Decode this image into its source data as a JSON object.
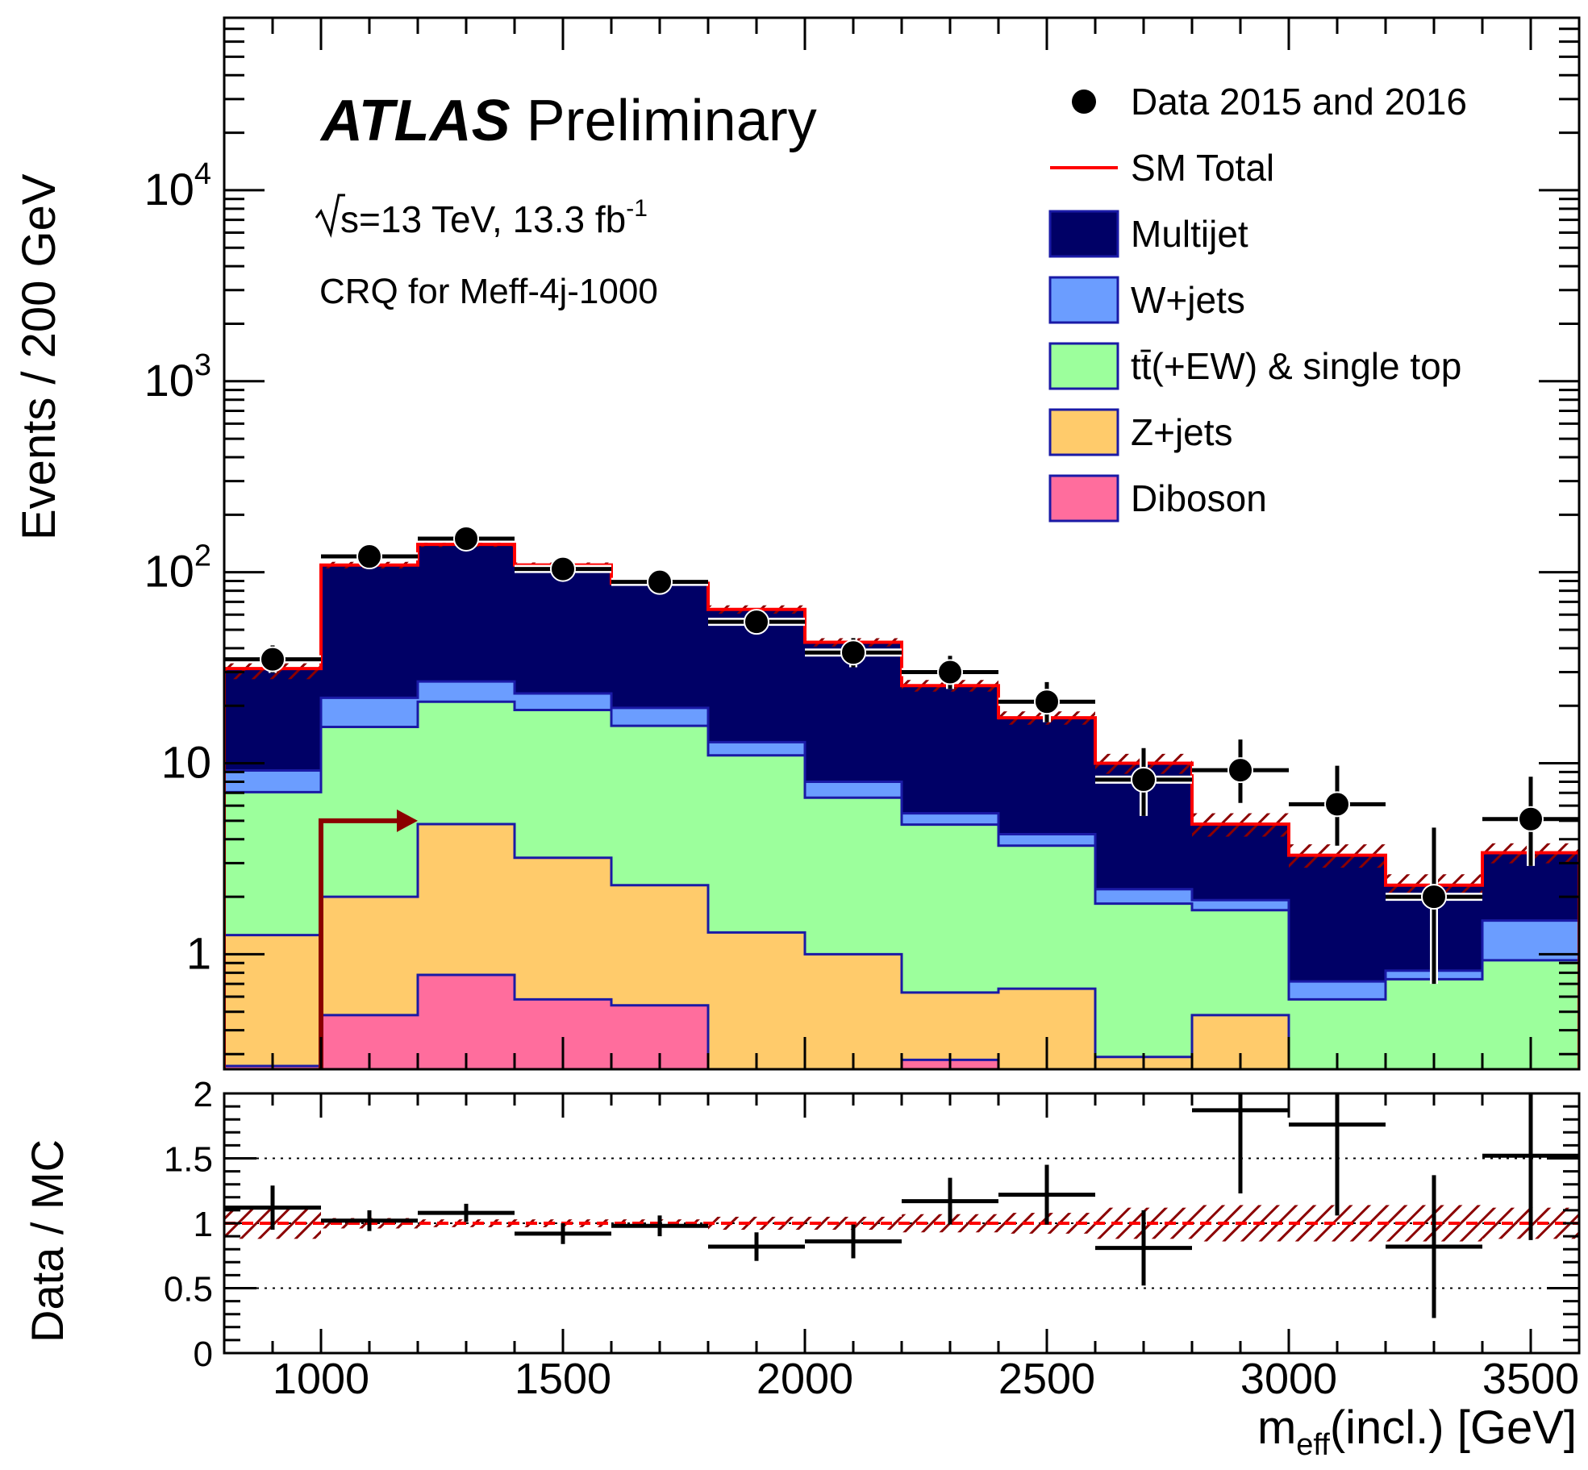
{
  "chart_data": {
    "type": "stacked-histogram",
    "experiment": "ATLAS",
    "status": "Preliminary",
    "energy_prefix": "s",
    "energy_text": "=13 TeV, 13.3 fb",
    "lumi_exp": "-1",
    "region": "CRQ for Meff-4j-1000",
    "ylabel": "Events / 200 GeV",
    "xlabel_main": "m",
    "xlabel_sub": "eff",
    "xlabel_rest": "(incl.) [GeV]",
    "ratio_ylabel": "Data / MC",
    "x_range": [
      800,
      3600
    ],
    "y_range_log": [
      0.25,
      80000
    ],
    "y_log": true,
    "ratio_range": [
      0,
      2
    ],
    "bin_edges": [
      800,
      1000,
      1200,
      1400,
      1600,
      1800,
      2000,
      2200,
      2400,
      2600,
      2800,
      3000,
      3200,
      3400,
      3600
    ],
    "x_ticks": [
      1000,
      1500,
      2000,
      2500,
      3000,
      3500
    ],
    "x_tick_labels": [
      "1000",
      "1500",
      "2000",
      "2500",
      "3000",
      "3500"
    ],
    "y_ticks": [
      {
        "value": 1,
        "base": "1",
        "exp": ""
      },
      {
        "value": 10,
        "base": "10",
        "exp": ""
      },
      {
        "value": 100,
        "base": "10",
        "exp": "2"
      },
      {
        "value": 1000,
        "base": "10",
        "exp": "3"
      },
      {
        "value": 10000,
        "base": "10",
        "exp": "4"
      }
    ],
    "ratio_ticks": [
      {
        "value": 0,
        "label": "0"
      },
      {
        "value": 0.5,
        "label": "0.5"
      },
      {
        "value": 1,
        "label": "1"
      },
      {
        "value": 1.5,
        "label": "1.5"
      },
      {
        "value": 2,
        "label": "2"
      }
    ],
    "series": [
      {
        "name": "Diboson",
        "color": "#ff6d9d",
        "values": [
          0.26,
          0.48,
          0.78,
          0.58,
          0.54,
          0.0,
          0.0,
          0.28,
          0.0,
          0.0,
          0.0,
          0.0,
          0.0,
          0.0
        ]
      },
      {
        "name": "Z+jets",
        "color": "#ffcb6b",
        "values": [
          1.0,
          1.52,
          4.02,
          2.62,
          1.76,
          1.3,
          1.0,
          0.35,
          0.66,
          0.29,
          0.48,
          0.0,
          0.0,
          0.0
        ]
      },
      {
        "name": "tt̄(+EW) & single top",
        "color": "#9cff9c",
        "values": [
          5.8,
          13.5,
          16.2,
          15.8,
          13.4,
          9.7,
          5.6,
          4.14,
          3.04,
          1.55,
          1.22,
          0.58,
          0.74,
          0.93
        ]
      },
      {
        "name": "W+jets",
        "color": "#6b9dff",
        "values": [
          2.1,
          6.5,
          5.8,
          4.2,
          3.8,
          1.9,
          1.4,
          0.7,
          0.55,
          0.35,
          0.22,
          0.14,
          0.08,
          0.57
        ]
      },
      {
        "name": "Multijet",
        "color": "#000066",
        "values": [
          22.1,
          87.0,
          113.0,
          86.0,
          68.0,
          51.0,
          35.0,
          20.0,
          13.0,
          7.8,
          2.9,
          2.58,
          1.48,
          1.9
        ]
      }
    ],
    "sm_total": {
      "name": "SM Total",
      "color": "#ff0000",
      "values": [
        31.3,
        109.0,
        139.8,
        109.2,
        87.5,
        63.9,
        43.0,
        25.5,
        17.3,
        10.0,
        4.8,
        3.3,
        2.3,
        3.4
      ]
    },
    "sm_uncertainty_rel": [
      0.12,
      0.04,
      0.03,
      0.03,
      0.03,
      0.05,
      0.05,
      0.07,
      0.08,
      0.12,
      0.14,
      0.14,
      0.14,
      0.12
    ],
    "data": {
      "name": "Data 2015 and 2016",
      "values": [
        35,
        121,
        150,
        104,
        89,
        55,
        38,
        30,
        21,
        8.2,
        9.2,
        6.1,
        2.0,
        5.1
      ],
      "err_low": [
        5.3,
        11.0,
        12.2,
        10.2,
        9.4,
        7.4,
        6.2,
        5.5,
        4.6,
        2.9,
        3.0,
        2.4,
        1.3,
        2.2
      ],
      "err_high": [
        6.4,
        12.0,
        13.2,
        11.2,
        10.4,
        8.4,
        7.2,
        6.5,
        5.6,
        3.8,
        4.1,
        3.6,
        2.6,
        3.4
      ]
    },
    "ratio": {
      "values": [
        1.12,
        1.02,
        1.08,
        0.92,
        0.98,
        0.82,
        0.86,
        1.17,
        1.22,
        0.81,
        1.87,
        1.76,
        0.82,
        1.52
      ],
      "err_low": [
        0.17,
        0.08,
        0.07,
        0.08,
        0.08,
        0.11,
        0.13,
        0.18,
        0.23,
        0.29,
        0.64,
        0.7,
        0.55,
        0.65
      ],
      "err_high": [
        0.17,
        0.08,
        0.07,
        0.08,
        0.08,
        0.11,
        0.13,
        0.18,
        0.23,
        0.29,
        0.64,
        0.7,
        0.55,
        0.65
      ]
    },
    "cut_arrow": {
      "x": 1000,
      "to_x": 1200,
      "y": 5.0,
      "color": "#8b0000"
    },
    "legend_position": "top-right",
    "grid": false
  }
}
